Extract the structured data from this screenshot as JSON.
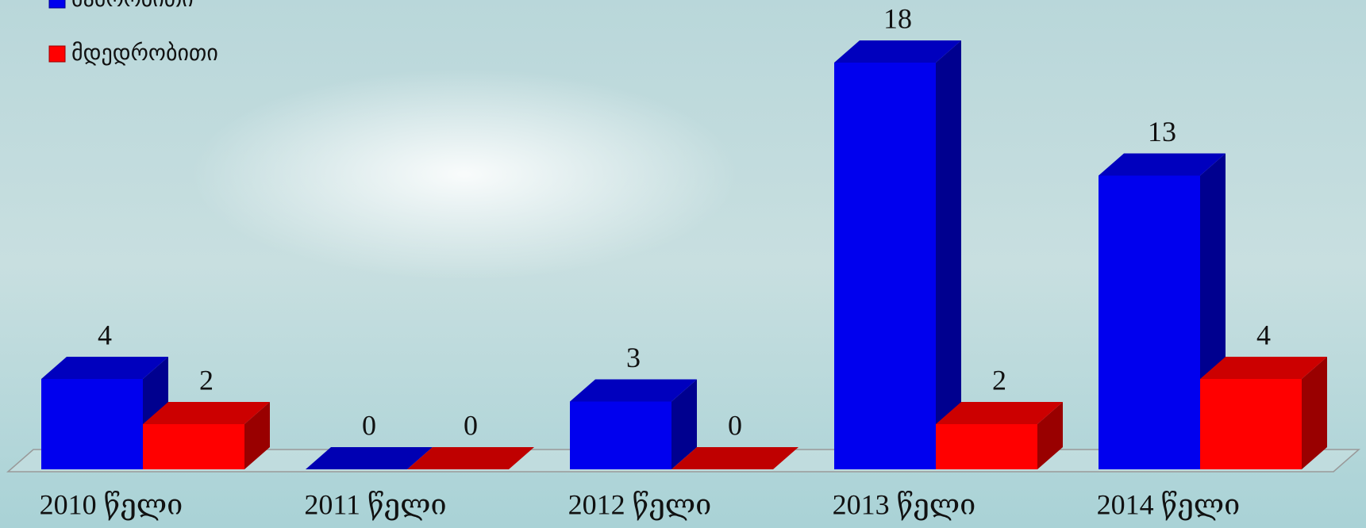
{
  "chart_data": {
    "type": "bar3d",
    "categories": [
      "2010 წელი",
      "2011 წელი",
      "2012 წელი",
      "2013 წელი",
      "2014 წელი"
    ],
    "series": [
      {
        "name": "მამრობითი",
        "color": "#0000ee",
        "values": [
          4,
          0,
          3,
          18,
          13
        ]
      },
      {
        "name": "მდედრობითი",
        "color": "#ff0000",
        "values": [
          2,
          0,
          0,
          2,
          4
        ]
      }
    ],
    "legend": "top-left"
  }
}
